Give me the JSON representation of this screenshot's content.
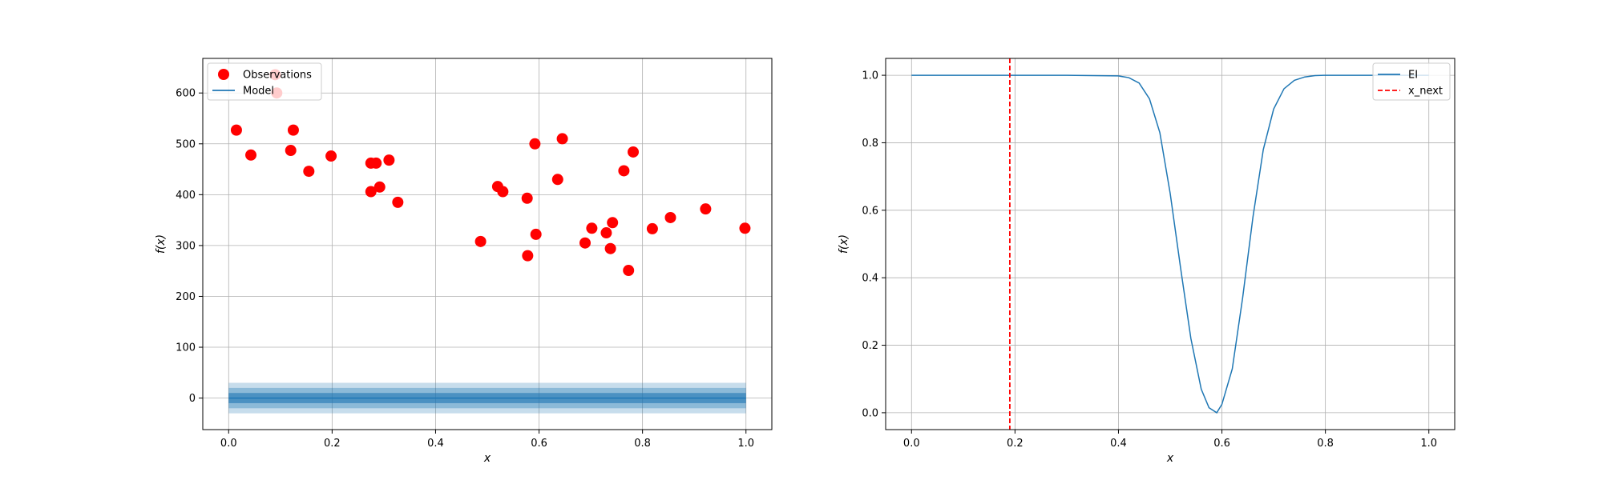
{
  "chart_data": [
    {
      "type": "scatter",
      "xlabel": "x",
      "ylabel": "f(x)",
      "xlim": [
        -0.05,
        1.05
      ],
      "ylim": [
        -62,
        668
      ],
      "xticks": [
        "0.0",
        "0.2",
        "0.4",
        "0.6",
        "0.8",
        "1.0"
      ],
      "yticks": [
        "0",
        "100",
        "200",
        "300",
        "400",
        "500",
        "600"
      ],
      "grid": true,
      "legend_position": "top-left",
      "series": [
        {
          "name": "Observations",
          "type": "scatter",
          "color": "#ff0000",
          "x": [
            0.015,
            0.043,
            0.09,
            0.093,
            0.12,
            0.125,
            0.155,
            0.198,
            0.275,
            0.275,
            0.285,
            0.292,
            0.31,
            0.327,
            0.487,
            0.52,
            0.53,
            0.577,
            0.578,
            0.592,
            0.594,
            0.636,
            0.645,
            0.689,
            0.702,
            0.73,
            0.738,
            0.742,
            0.764,
            0.773,
            0.782,
            0.819,
            0.854,
            0.922,
            0.998
          ],
          "y": [
            527,
            478,
            636,
            600,
            487,
            527,
            446,
            476,
            462,
            406,
            462,
            415,
            468,
            385,
            308,
            416,
            406,
            393,
            280,
            500,
            322,
            430,
            510,
            305,
            334,
            325,
            294,
            345,
            447,
            251,
            484,
            333,
            355,
            372,
            334
          ]
        },
        {
          "name": "Model",
          "type": "line",
          "color": "#1f77b4",
          "x": [
            0.0,
            1.0
          ],
          "y": [
            0,
            0
          ],
          "bands": [
            {
              "lower": -10,
              "upper": 10,
              "opacity": 0.6
            },
            {
              "lower": -20,
              "upper": 20,
              "opacity": 0.35
            },
            {
              "lower": -30,
              "upper": 30,
              "opacity": 0.25
            }
          ]
        }
      ]
    },
    {
      "type": "line",
      "xlabel": "x",
      "ylabel": "f(x)",
      "xlim": [
        -0.05,
        1.05
      ],
      "ylim": [
        -0.05,
        1.05
      ],
      "xticks": [
        "0.0",
        "0.2",
        "0.4",
        "0.6",
        "0.8",
        "1.0"
      ],
      "yticks": [
        "0.0",
        "0.2",
        "0.4",
        "0.6",
        "0.8",
        "1.0"
      ],
      "grid": true,
      "legend_position": "top-right",
      "series": [
        {
          "name": "EI",
          "type": "line",
          "color": "#1f77b4",
          "x": [
            0.0,
            0.1,
            0.2,
            0.3,
            0.4,
            0.42,
            0.44,
            0.46,
            0.48,
            0.5,
            0.52,
            0.54,
            0.56,
            0.575,
            0.59,
            0.6,
            0.62,
            0.64,
            0.66,
            0.68,
            0.7,
            0.72,
            0.74,
            0.76,
            0.78,
            0.8,
            0.9,
            1.0
          ],
          "y": [
            1.0,
            1.0,
            1.0,
            1.0,
            0.998,
            0.993,
            0.977,
            0.93,
            0.83,
            0.65,
            0.43,
            0.22,
            0.07,
            0.015,
            0.0,
            0.025,
            0.13,
            0.34,
            0.58,
            0.78,
            0.9,
            0.96,
            0.985,
            0.995,
            0.999,
            1.0,
            1.0,
            1.0
          ]
        },
        {
          "name": "x_next",
          "type": "vline",
          "color": "#ff0000",
          "x": 0.19
        }
      ]
    }
  ]
}
